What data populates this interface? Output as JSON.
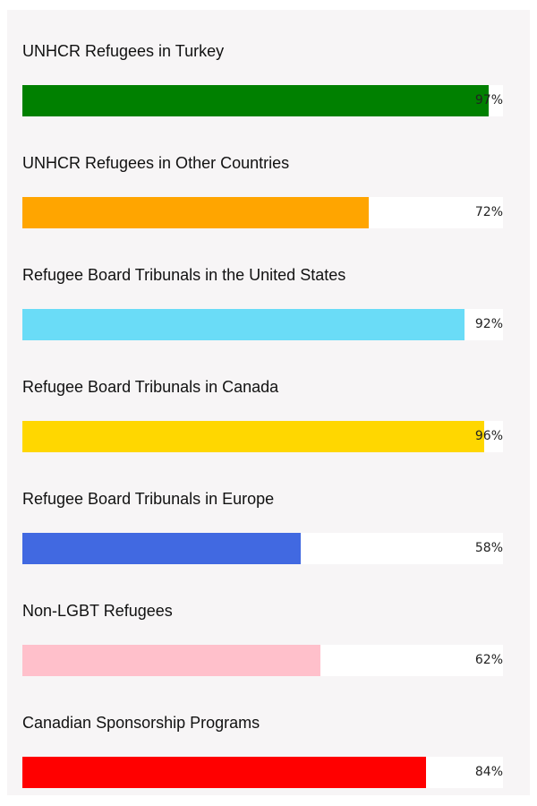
{
  "chart_data": {
    "type": "bar",
    "orientation": "horizontal",
    "categories": [
      "UNHCR Refugees in Turkey",
      "UNHCR Refugees in Other Countries",
      "Refugee Board Tribunals in the United States",
      "Refugee Board Tribunals in Canada",
      "Refugee Board Tribunals in Europe",
      "Non-LGBT Refugees",
      "Canadian Sponsorship Programs"
    ],
    "values": [
      97,
      72,
      92,
      96,
      58,
      62,
      84
    ],
    "value_labels": [
      "97%",
      "72%",
      "92%",
      "96%",
      "58%",
      "62%",
      "84%"
    ],
    "colors": [
      "#008000",
      "#ffa500",
      "#6adcf7",
      "#ffd700",
      "#4169e1",
      "#ffc0cb",
      "#ff0000"
    ],
    "xlim": [
      0,
      100
    ],
    "grid": false,
    "legend": "none",
    "title": "",
    "xlabel": "",
    "ylabel": ""
  }
}
